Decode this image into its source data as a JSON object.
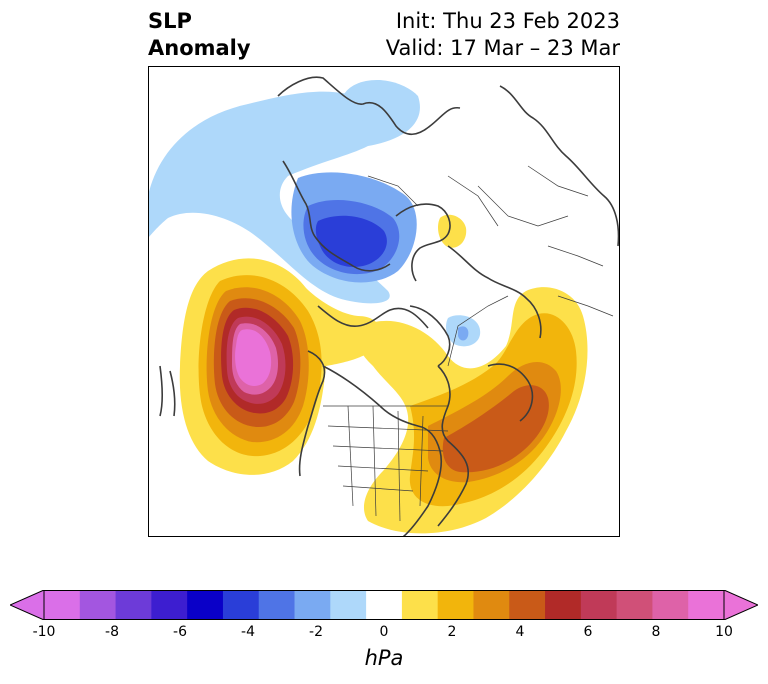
{
  "header": {
    "title_line1": "SLP",
    "title_line2": "Anomaly",
    "init_text": "Init: Thu 23 Feb 2023",
    "valid_text": "Valid: 17 Mar – 23 Mar"
  },
  "colorbar": {
    "unit": "hPa",
    "tick_labels": [
      "-10",
      "-8",
      "-6",
      "-4",
      "-2",
      "0",
      "2",
      "4",
      "6",
      "8",
      "10"
    ],
    "levels": [
      -10,
      -9,
      -8,
      -7,
      -6,
      -5,
      -4,
      -3,
      -2,
      -1,
      1,
      2,
      3,
      4,
      5,
      6,
      7,
      8,
      9,
      10
    ],
    "colors": [
      "#da6fe8",
      "#a356e0",
      "#6d3bd8",
      "#3d1ed0",
      "#0a00c8",
      "#2a3ed8",
      "#4f74e6",
      "#7aaaf2",
      "#aed8fa",
      "#ffffff",
      "#fde04a",
      "#f2b50c",
      "#e08a10",
      "#c95a18",
      "#b12a28",
      "#c03a58",
      "#d05078",
      "#de62a8",
      "#ea72d8"
    ],
    "extend_low_color": "#da6fe8",
    "extend_high_color": "#ea72d8"
  },
  "map": {
    "projection": "north-polar-stereographic",
    "features": [
      {
        "name": "Aleutian / NE Pacific high anomaly",
        "peak_hpa": 10
      },
      {
        "name": "Western Atlantic high anomaly",
        "peak_hpa": 5
      },
      {
        "name": "Northern Europe / Scandinavia low anomaly",
        "peak_hpa": -5
      },
      {
        "name": "Arctic low anomaly",
        "peak_hpa": -2
      }
    ]
  }
}
